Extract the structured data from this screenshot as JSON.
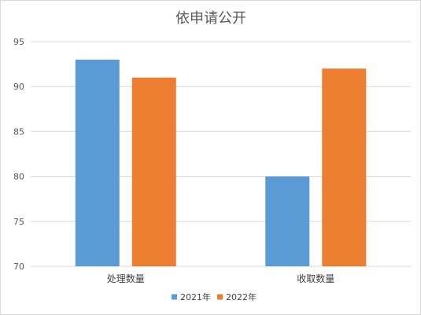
{
  "chart_data": {
    "type": "bar",
    "title": "依申请公开",
    "xlabel": "",
    "ylabel": "",
    "categories": [
      "处理数量",
      "收取数量"
    ],
    "series": [
      {
        "name": "2021年",
        "values": [
          93,
          80
        ],
        "color": "#5B9BD5"
      },
      {
        "name": "2022年",
        "values": [
          91,
          92
        ],
        "color": "#ED7D31"
      }
    ],
    "ylim": [
      70,
      95
    ],
    "yticks": [
      70,
      75,
      80,
      85,
      90,
      95
    ],
    "grid": true,
    "legend_position": "bottom"
  }
}
